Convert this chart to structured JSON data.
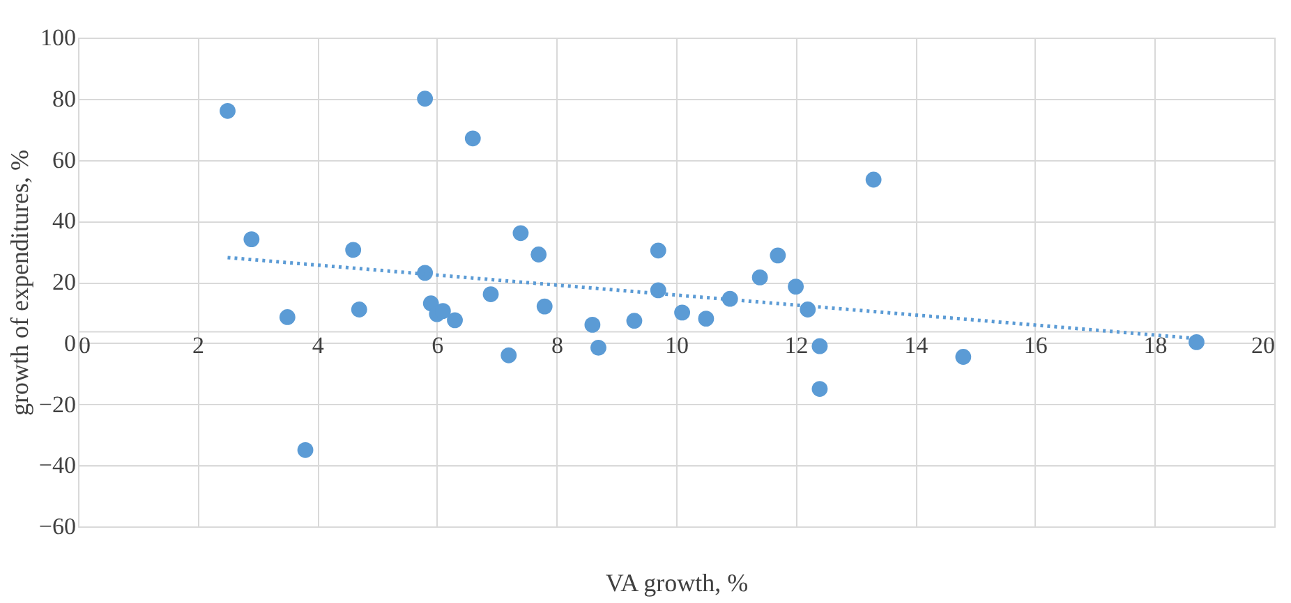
{
  "chart_data": {
    "type": "scatter",
    "xlabel": "VA growth, %",
    "ylabel": "growth of expenditures, %",
    "xlim": [
      0,
      20
    ],
    "xticks": [
      0,
      2,
      4,
      6,
      8,
      10,
      12,
      14,
      16,
      18,
      20
    ],
    "ylim": [
      -60,
      100
    ],
    "yticks": [
      -60,
      -40,
      -20,
      0,
      20,
      40,
      60,
      80,
      100
    ],
    "grid": true,
    "marker": "circle",
    "series": [
      {
        "color": "#5b9bd5",
        "x": [
          2.5,
          2.9,
          3.5,
          3.8,
          4.6,
          4.7,
          5.8,
          5.8,
          5.9,
          6.0,
          6.1,
          6.3,
          6.6,
          6.9,
          7.2,
          7.4,
          7.7,
          7.8,
          8.6,
          8.7,
          9.3,
          9.7,
          9.7,
          10.1,
          10.5,
          10.9,
          11.4,
          11.7,
          12.0,
          12.2,
          12.4,
          12.4,
          13.3,
          14.8,
          18.7
        ],
        "values": [
          76,
          34,
          8.5,
          -35,
          30.5,
          11,
          80,
          23,
          13,
          9.5,
          10.5,
          7.5,
          67,
          16,
          -4,
          36,
          29,
          12,
          6,
          -1.5,
          7.3,
          30.3,
          17.3,
          10,
          8,
          14.5,
          21.5,
          28.7,
          18.5,
          11,
          -1,
          -15,
          53.5,
          -4.5,
          0.3
        ]
      },
      {
        "type": "line",
        "color": "#5b9bd5",
        "line_style": "dotted",
        "marker": "none",
        "x": [
          2.5,
          18.7
        ],
        "values": [
          28,
          1.5
        ]
      }
    ]
  }
}
